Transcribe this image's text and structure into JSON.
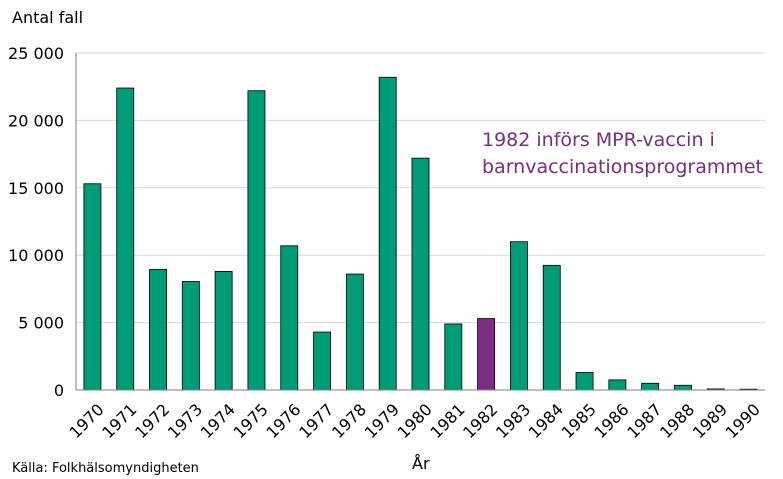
{
  "chart_data": {
    "type": "bar",
    "ylabel": "Antal fall",
    "xlabel": "År",
    "source": "Källa: Folkhälsomyndigheten",
    "annotation": [
      "1982 införs MPR-vaccin i",
      "barnvaccinationsprogrammet"
    ],
    "ylim": [
      0,
      25000
    ],
    "yticks": [
      0,
      5000,
      10000,
      15000,
      20000,
      25000
    ],
    "ytick_labels": [
      "0",
      "5 000",
      "10 000",
      "15 000",
      "20 000",
      "25 000"
    ],
    "grid": true,
    "categories": [
      "1970",
      "1971",
      "1972",
      "1973",
      "1974",
      "1975",
      "1976",
      "1977",
      "1978",
      "1979",
      "1980",
      "1981",
      "1982",
      "1983",
      "1984",
      "1985",
      "1986",
      "1987",
      "1988",
      "1989",
      "1990"
    ],
    "values": [
      15300,
      22400,
      8950,
      8050,
      8800,
      22200,
      10700,
      4300,
      8600,
      23200,
      17200,
      4900,
      5300,
      11000,
      9250,
      1300,
      750,
      500,
      350,
      80,
      60
    ],
    "bar_color": "#009b77",
    "highlight_category": "1982",
    "highlight_color": "#7b2d83"
  }
}
